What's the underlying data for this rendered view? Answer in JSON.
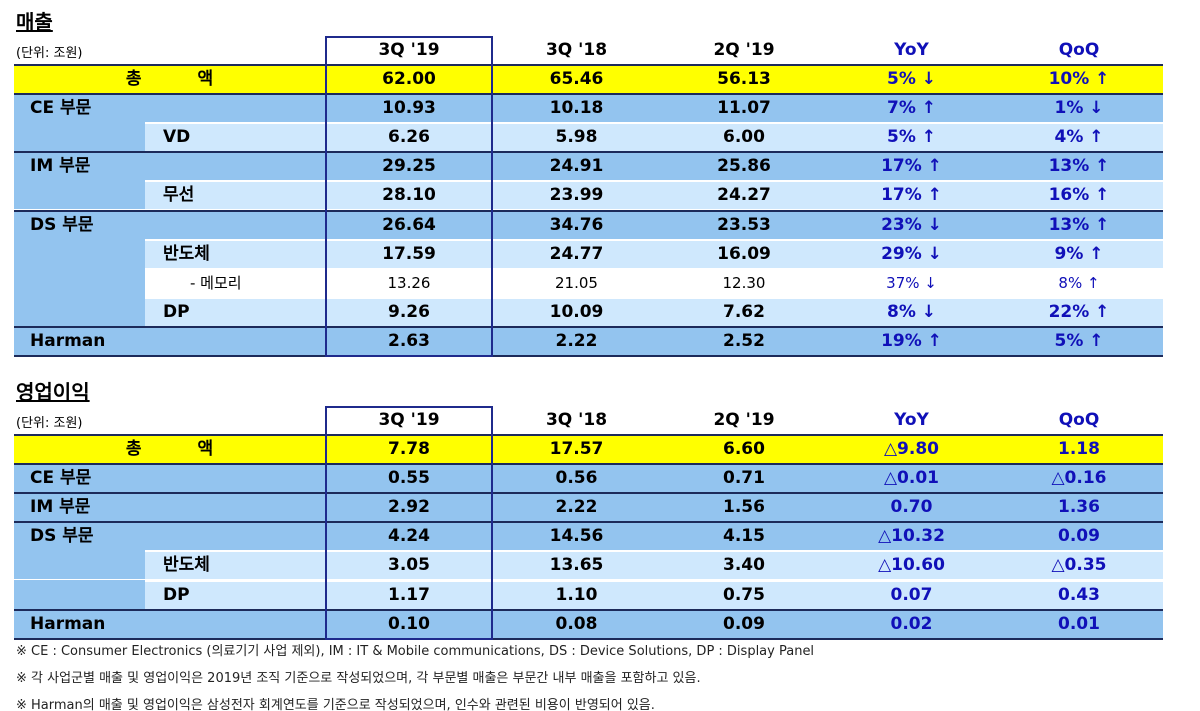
{
  "sales": {
    "title": "매출",
    "unit": "(단위: 조원)",
    "headers": [
      "3Q '19",
      "3Q '18",
      "2Q '19",
      "YoY",
      "QoQ"
    ],
    "rows": [
      {
        "label": "총 액",
        "values": [
          "62.00",
          "65.46",
          "56.13",
          "5% ↓",
          "10% ↑"
        ]
      },
      {
        "label": "CE 부문",
        "values": [
          "10.93",
          "10.18",
          "11.07",
          "7% ↑",
          "1% ↓"
        ]
      },
      {
        "label": "VD",
        "values": [
          "6.26",
          "5.98",
          "6.00",
          "5% ↑",
          "4% ↑"
        ]
      },
      {
        "label": "IM 부문",
        "values": [
          "29.25",
          "24.91",
          "25.86",
          "17% ↑",
          "13% ↑"
        ]
      },
      {
        "label": "무선",
        "values": [
          "28.10",
          "23.99",
          "24.27",
          "17% ↑",
          "16% ↑"
        ]
      },
      {
        "label": "DS 부문",
        "values": [
          "26.64",
          "34.76",
          "23.53",
          "23% ↓",
          "13% ↑"
        ]
      },
      {
        "label": "반도체",
        "values": [
          "17.59",
          "24.77",
          "16.09",
          "29% ↓",
          "9% ↑"
        ]
      },
      {
        "label": "- 메모리",
        "values": [
          "13.26",
          "21.05",
          "12.30",
          "37% ↓",
          "8% ↑"
        ]
      },
      {
        "label": "DP",
        "values": [
          "9.26",
          "10.09",
          "7.62",
          "8% ↓",
          "22% ↑"
        ]
      },
      {
        "label": "Harman",
        "values": [
          "2.63",
          "2.22",
          "2.52",
          "19% ↑",
          "5% ↑"
        ]
      }
    ]
  },
  "operating_profit": {
    "title": "영업이익",
    "unit": "(단위: 조원)",
    "headers": [
      "3Q '19",
      "3Q '18",
      "2Q '19",
      "YoY",
      "QoQ"
    ],
    "rows": [
      {
        "label": "총 액",
        "values": [
          "7.78",
          "17.57",
          "6.60",
          "△9.80",
          "1.18"
        ]
      },
      {
        "label": "CE 부문",
        "values": [
          "0.55",
          "0.56",
          "0.71",
          "△0.01",
          "△0.16"
        ]
      },
      {
        "label": "IM 부문",
        "values": [
          "2.92",
          "2.22",
          "1.56",
          "0.70",
          "1.36"
        ]
      },
      {
        "label": "DS 부문",
        "values": [
          "4.24",
          "14.56",
          "4.15",
          "△10.32",
          "0.09"
        ]
      },
      {
        "label": "반도체",
        "values": [
          "3.05",
          "13.65",
          "3.40",
          "△10.60",
          "△0.35"
        ]
      },
      {
        "label": "DP",
        "values": [
          "1.17",
          "1.10",
          "0.75",
          "0.07",
          "0.43"
        ]
      },
      {
        "label": "Harman",
        "values": [
          "0.10",
          "0.08",
          "0.09",
          "0.02",
          "0.01"
        ]
      }
    ]
  },
  "footnotes": [
    "※ CE : Consumer Electronics (의료기기 사업 제외),  IM : IT & Mobile communications,  DS : Device Solutions,  DP : Display Panel",
    "※ 각 사업군별 매출 및 영업이익은 2019년 조직 기준으로 작성되었으며, 각 부문별 매출은 부문간 내부 매출을 포함하고 있음.",
    "※ Harman의 매출 및 영업이익은 삼성전자 회계연도를 기준으로 작성되었으며, 인수와 관련된 비용이 반영되어 있음."
  ]
}
